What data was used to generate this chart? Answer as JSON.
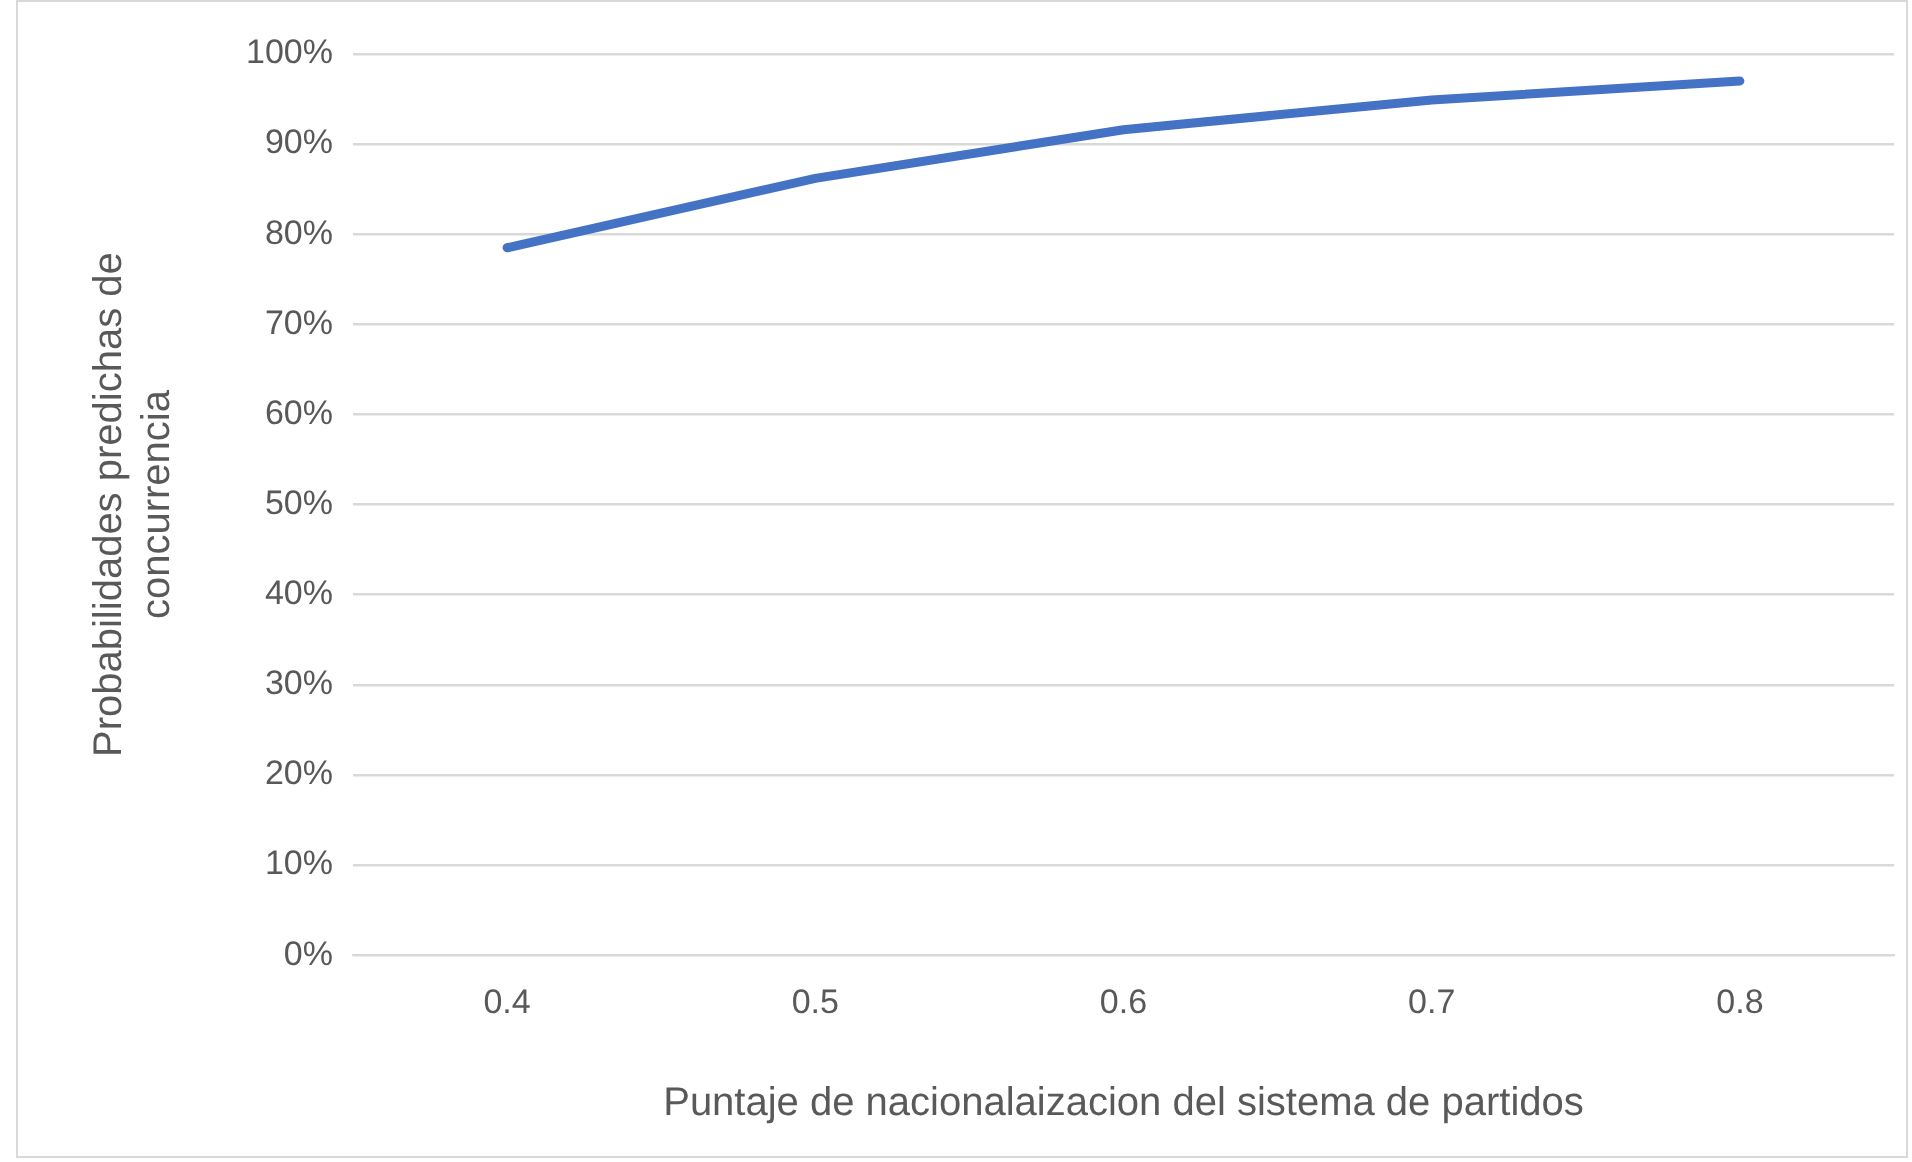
{
  "chart_data": {
    "type": "line",
    "xlabel": "Puntaje de nacionalaizacion del sistema de partidos",
    "ylabel": "Probabilidades predichas de concurrencia",
    "categories": [
      "0.4",
      "0.5",
      "0.6",
      "0.7",
      "0.8"
    ],
    "series": [
      {
        "color": "#4472c4",
        "values": [
          78.5,
          86.2,
          91.6,
          94.9,
          97.0
        ]
      }
    ],
    "ylim": [
      0,
      100
    ],
    "yticks": [
      {
        "value": 0,
        "label": "0%"
      },
      {
        "value": 10,
        "label": "10%"
      },
      {
        "value": 20,
        "label": "20%"
      },
      {
        "value": 30,
        "label": "30%"
      },
      {
        "value": 40,
        "label": "40%"
      },
      {
        "value": 50,
        "label": "50%"
      },
      {
        "value": 60,
        "label": "60%"
      },
      {
        "value": 70,
        "label": "70%"
      },
      {
        "value": 80,
        "label": "80%"
      },
      {
        "value": 90,
        "label": "90%"
      },
      {
        "value": 100,
        "label": "100%"
      }
    ],
    "grid": "y",
    "legend": false,
    "marker": "none",
    "line_style": "solid"
  }
}
